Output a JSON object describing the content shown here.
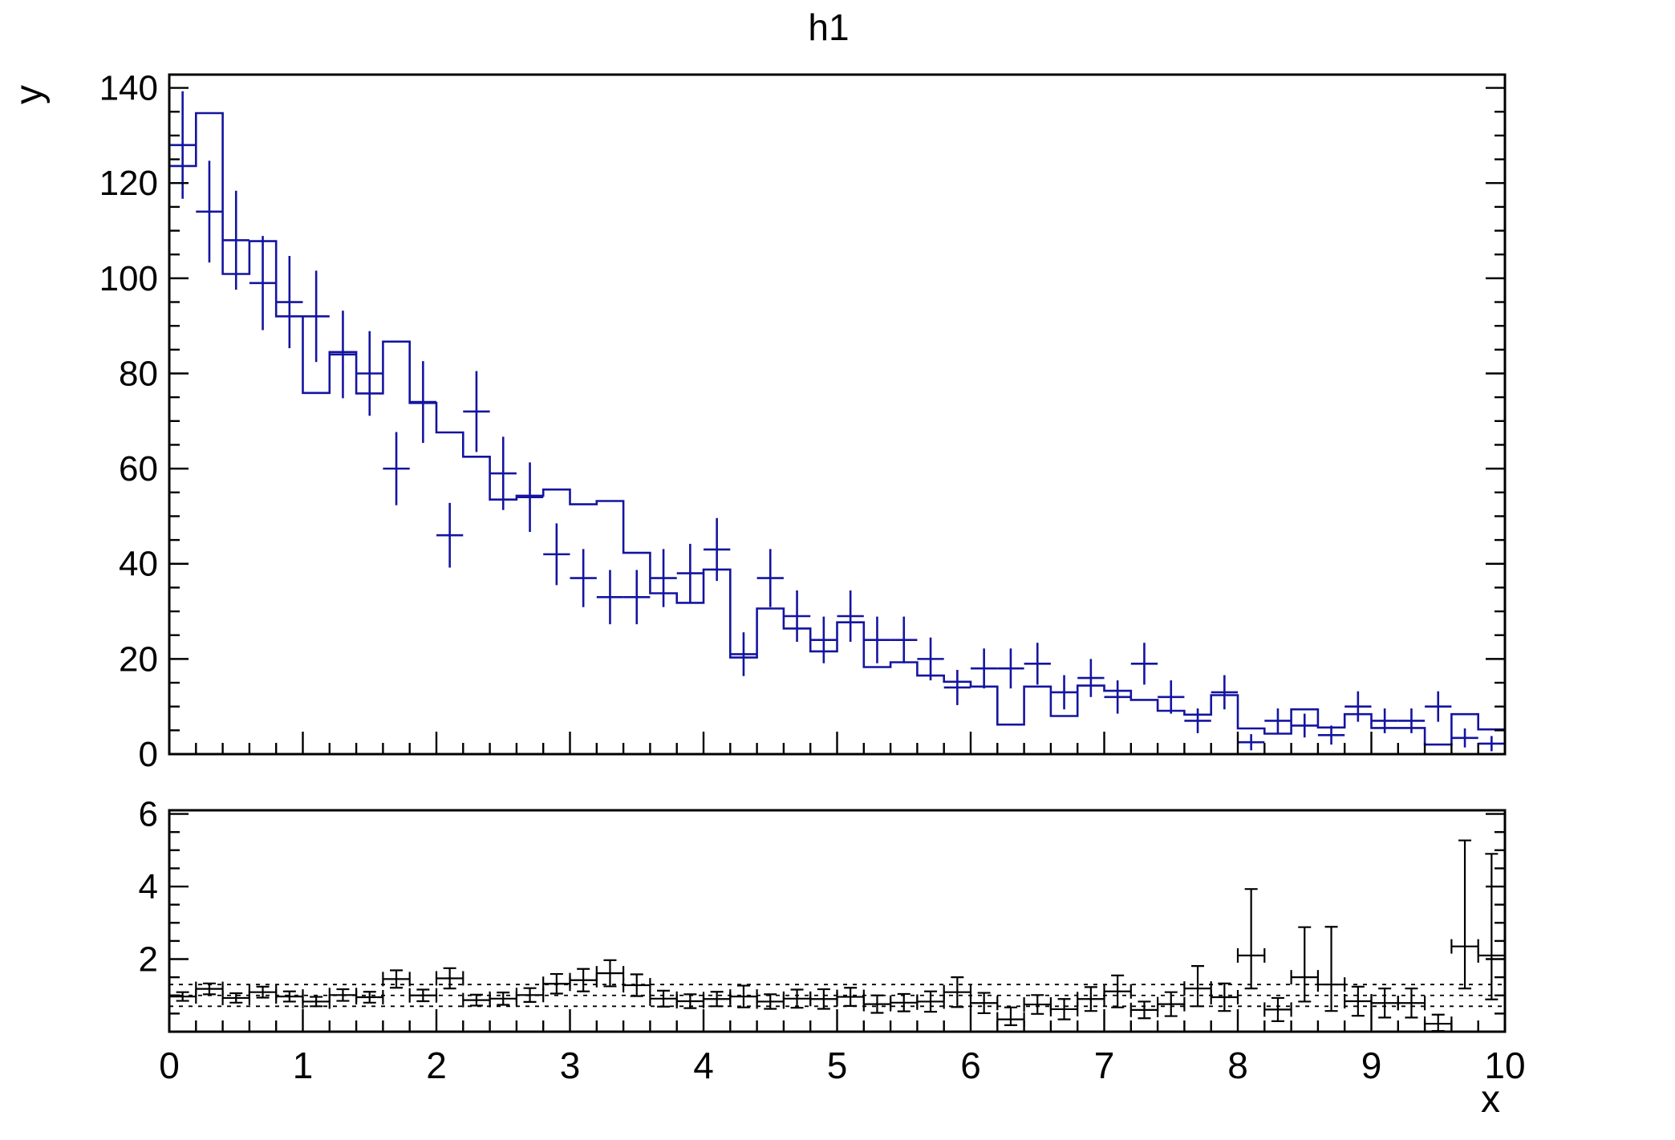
{
  "title": "h1",
  "axes": {
    "x_label": "x",
    "y_label": "y",
    "x_ticks": [
      0,
      1,
      2,
      3,
      4,
      5,
      6,
      7,
      8,
      9,
      10
    ],
    "main_y_ticks": [
      0,
      20,
      40,
      60,
      80,
      100,
      120,
      140
    ],
    "ratio_y_ticks": [
      2,
      4,
      6
    ]
  },
  "colors": {
    "histogram": "#1414a0",
    "ratio_points": "#000000",
    "frame": "#000000",
    "background": "#ffffff"
  },
  "chart_data": {
    "type": "line",
    "subtype": "step-histogram-with-errorbars-and-ratio-panel",
    "title": "h1",
    "xlabel": "x",
    "ylabel": "y",
    "x_start": 0.0,
    "bin_width": 0.2,
    "n_bins": 50,
    "main_panel": {
      "ylim": [
        0,
        142.8
      ],
      "grid": false,
      "step_line_values": [
        123.6,
        134.7,
        100.9,
        107.8,
        92.0,
        75.9,
        84.5,
        75.8,
        86.7,
        73.8,
        67.6,
        62.5,
        53.5,
        54.3,
        55.6,
        52.5,
        53.2,
        42.3,
        33.8,
        31.8,
        38.8,
        20.3,
        30.6,
        26.4,
        21.6,
        27.7,
        18.3,
        19.3,
        16.5,
        15.2,
        14.2,
        6.2,
        14.2,
        8.0,
        14.4,
        13.3,
        11.4,
        9.1,
        8.3,
        12.4,
        5.4,
        4.3,
        9.4,
        5.6,
        8.4,
        5.5,
        5.5,
        2.0,
        8.4,
        5.2
      ],
      "marker_values": [
        128,
        114,
        108,
        99,
        95,
        92,
        84,
        80,
        60,
        74,
        46,
        72,
        59,
        54,
        42,
        37,
        33,
        33,
        37,
        38,
        43,
        21,
        37,
        29,
        24,
        29,
        24,
        24,
        20,
        14,
        18,
        18,
        19,
        13,
        16,
        12,
        19,
        12,
        7,
        13,
        2.5,
        7,
        6,
        4,
        10,
        7,
        7,
        10,
        3.4,
        2.2
      ],
      "marker_errors": [
        11.3,
        10.7,
        10.4,
        9.9,
        9.7,
        9.6,
        9.2,
        8.9,
        7.7,
        8.6,
        6.8,
        8.5,
        7.7,
        7.3,
        6.5,
        6.1,
        5.7,
        5.7,
        6.1,
        6.2,
        6.6,
        4.6,
        6.1,
        5.4,
        4.9,
        5.4,
        4.9,
        4.9,
        4.5,
        3.7,
        4.2,
        4.2,
        4.4,
        3.6,
        4.0,
        3.5,
        4.4,
        3.5,
        2.6,
        3.6,
        1.7,
        2.6,
        2.5,
        2.0,
        3.2,
        2.6,
        2.6,
        3.2,
        2.0,
        1.6
      ]
    },
    "ratio_panel": {
      "ylim": [
        0,
        6.1
      ],
      "gridlines": [
        0.7,
        1.0,
        1.3
      ],
      "values": [
        0.97,
        1.18,
        0.93,
        1.09,
        0.97,
        0.83,
        1.01,
        0.95,
        1.45,
        1.0,
        1.47,
        0.87,
        0.91,
        1.01,
        1.32,
        1.42,
        1.61,
        1.28,
        0.91,
        0.84,
        0.9,
        0.97,
        0.83,
        0.91,
        0.9,
        0.96,
        0.76,
        0.8,
        0.83,
        1.09,
        0.79,
        0.34,
        0.75,
        0.62,
        0.9,
        1.11,
        0.6,
        0.76,
        1.19,
        0.95,
        2.1,
        0.61,
        1.5,
        1.3,
        0.84,
        0.79,
        0.79,
        0.22,
        2.35,
        2.1
      ],
      "err_up": [
        0.12,
        0.15,
        0.13,
        0.15,
        0.14,
        0.13,
        0.16,
        0.15,
        0.24,
        0.16,
        0.28,
        0.15,
        0.17,
        0.19,
        0.27,
        0.31,
        0.36,
        0.3,
        0.22,
        0.19,
        0.2,
        0.3,
        0.2,
        0.25,
        0.27,
        0.25,
        0.24,
        0.24,
        0.28,
        0.41,
        0.28,
        0.33,
        0.26,
        0.28,
        0.33,
        0.44,
        0.23,
        0.33,
        0.62,
        0.38,
        1.83,
        0.32,
        1.38,
        1.59,
        0.4,
        0.4,
        0.4,
        0.25,
        2.92,
        2.8
      ],
      "err_down": [
        0.12,
        0.15,
        0.13,
        0.15,
        0.14,
        0.13,
        0.16,
        0.15,
        0.24,
        0.16,
        0.28,
        0.15,
        0.17,
        0.19,
        0.27,
        0.31,
        0.36,
        0.3,
        0.22,
        0.19,
        0.2,
        0.3,
        0.2,
        0.25,
        0.27,
        0.25,
        0.24,
        0.24,
        0.28,
        0.41,
        0.28,
        0.16,
        0.26,
        0.28,
        0.33,
        0.44,
        0.23,
        0.33,
        0.49,
        0.38,
        0.91,
        0.32,
        0.67,
        0.73,
        0.4,
        0.4,
        0.4,
        0.2,
        1.16,
        1.21
      ]
    }
  }
}
